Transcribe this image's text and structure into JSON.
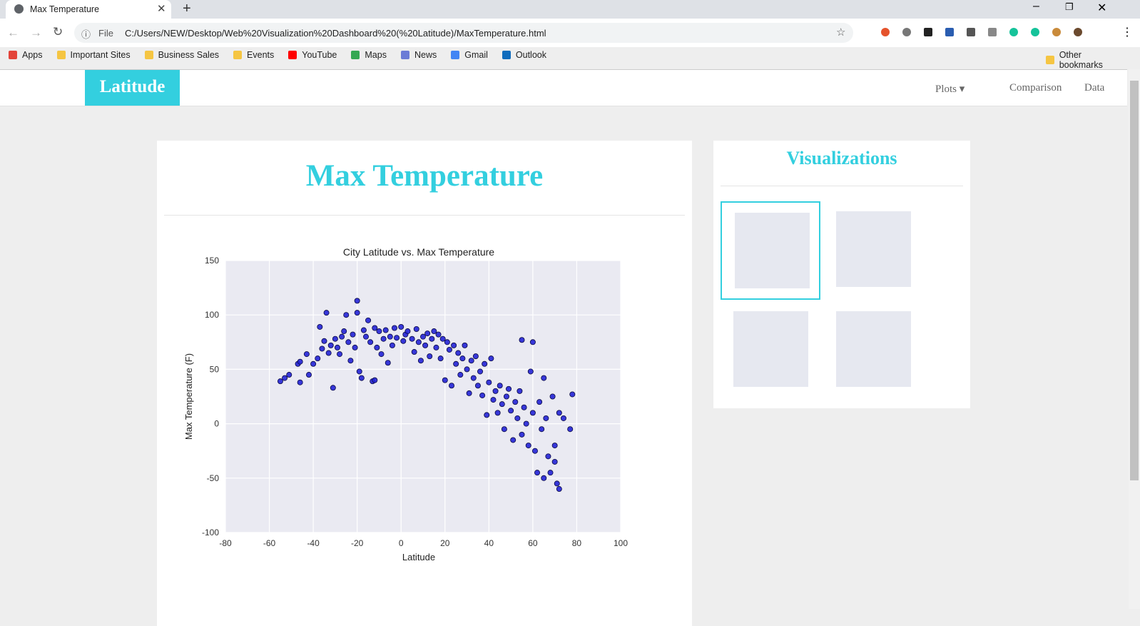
{
  "browser": {
    "tab_title": "Max Temperature",
    "scheme": "File",
    "url": "C:/Users/NEW/Desktop/Web%20Visualization%20Dashboard%20(%20Latitude)/MaxTemperature.html",
    "bookmarks": [
      "Apps",
      "Important Sites",
      "Business Sales",
      "Events",
      "YouTube",
      "Maps",
      "News",
      "Gmail",
      "Outlook"
    ],
    "other_bookmarks": "Other bookmarks"
  },
  "navbar": {
    "brand": "Latitude",
    "links": [
      "Plots",
      "Comparison",
      "Data"
    ]
  },
  "main": {
    "heading": "Max Temperature"
  },
  "sidebar": {
    "heading": "Visualizations"
  },
  "chart_data": {
    "type": "scatter",
    "title": "City Latitude vs. Max Temperature",
    "x_label": "Latitude",
    "y_label": "Max Temperature (F)",
    "color": "#2323d6",
    "edge_color": "#0a0a40",
    "grid": true,
    "xlim": [
      -80,
      100
    ],
    "ylim": [
      -100,
      150
    ],
    "xticks": [
      -80,
      -60,
      -40,
      -20,
      0,
      20,
      40,
      60,
      80,
      100
    ],
    "yticks": [
      -100,
      -50,
      0,
      50,
      100,
      150
    ],
    "x": [
      -55,
      -53,
      -51,
      -47,
      -46,
      -46,
      -43,
      -42,
      -40,
      -38,
      -37,
      -36,
      -35,
      -34,
      -33,
      -32,
      -31,
      -30,
      -29,
      -28,
      -27,
      -26,
      -25,
      -24,
      -23,
      -22,
      -21,
      -20,
      -20,
      -19,
      -18,
      -17,
      -16,
      -15,
      -14,
      -13,
      -12,
      -11,
      -10,
      -9,
      -8,
      -7,
      -6,
      -5,
      -4,
      -3,
      -2,
      0,
      1,
      2,
      3,
      5,
      6,
      7,
      8,
      9,
      10,
      11,
      12,
      13,
      14,
      15,
      16,
      17,
      18,
      19,
      20,
      21,
      22,
      23,
      24,
      25,
      26,
      27,
      28,
      29,
      30,
      31,
      32,
      33,
      34,
      35,
      36,
      37,
      38,
      39,
      40,
      41,
      42,
      43,
      44,
      45,
      46,
      47,
      48,
      49,
      50,
      51,
      52,
      53,
      54,
      55,
      55,
      56,
      57,
      58,
      59,
      60,
      60,
      61,
      62,
      63,
      64,
      65,
      65,
      66,
      67,
      68,
      69,
      70,
      70,
      71,
      72,
      72,
      74,
      77,
      78,
      -12
    ],
    "y": [
      39,
      42,
      45,
      55,
      57,
      38,
      64,
      45,
      55,
      60,
      89,
      69,
      76,
      102,
      65,
      72,
      33,
      78,
      70,
      64,
      80,
      85,
      100,
      75,
      58,
      82,
      70,
      113,
      102,
      48,
      42,
      86,
      80,
      95,
      75,
      39,
      88,
      70,
      85,
      64,
      78,
      86,
      56,
      80,
      72,
      88,
      79,
      89,
      76,
      82,
      85,
      78,
      66,
      87,
      75,
      58,
      80,
      72,
      83,
      62,
      78,
      85,
      70,
      82,
      60,
      78,
      40,
      75,
      68,
      35,
      72,
      55,
      65,
      45,
      60,
      72,
      50,
      28,
      58,
      42,
      62,
      35,
      48,
      26,
      55,
      8,
      38,
      60,
      22,
      30,
      10,
      35,
      18,
      -5,
      25,
      32,
      12,
      -15,
      20,
      5,
      30,
      77,
      -10,
      15,
      0,
      -20,
      48,
      75,
      10,
      -25,
      -45,
      20,
      -5,
      42,
      -50,
      5,
      -30,
      -45,
      25,
      -35,
      -20,
      -55,
      -60,
      10,
      5,
      -5,
      27,
      40
    ]
  }
}
